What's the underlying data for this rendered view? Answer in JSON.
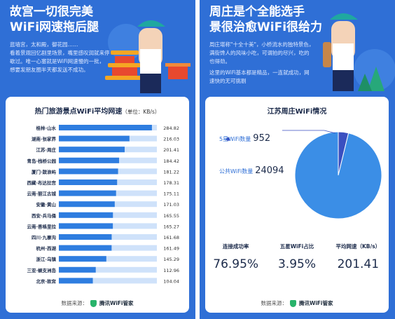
{
  "left": {
    "headline": [
      "故宫一切很完美",
      "WiFi网速拖后腿"
    ],
    "intro": [
      "逛墙宫，太和殿，御花园……",
      "看着景观回忆剧里场景，嘴里感叹润就来停",
      "歇过。唯一心塞就是WiFi网速慢的一批，",
      "想要发朋友圈半天都发送不成功。"
    ],
    "card_title": "热门旅游景点WiFi平均网速",
    "card_unit": "（单位：KB/s）",
    "footer_source": "数据来源：",
    "footer_brand": "腾讯WiFi管家"
  },
  "right": {
    "headline": [
      "周庄是个全能选手",
      "景很治愈WiFi很给力"
    ],
    "intro": [
      "周庄堪称\"十全十美\"，小桥流水的独特景色，",
      "满街馋人的风味小吃，可谓拍的尽兴，吃的",
      "也得劲。",
      "这里的WiFi基本都是精品，一连就成功，网",
      "速快的无可挑剔"
    ],
    "card_title": "江苏周庄WiFi情况",
    "pie_labels": [
      {
        "label": "5星WiFi数量",
        "value": "952"
      },
      {
        "label": "公共WiFi数量",
        "value": "24094"
      }
    ],
    "stats": [
      {
        "label": "连接成功率",
        "value": "76.95%"
      },
      {
        "label": "五星WiFi占比",
        "value": "3.95%"
      },
      {
        "label": "平均网速（KB/s）",
        "value": "201.41"
      }
    ],
    "footer_source": "数据来源：",
    "footer_brand": "腾讯WiFi管家"
  },
  "colors": {
    "panel_bg": "#2f6fd6",
    "bar": "#2e7de0",
    "bar_track": "#cfe2fa",
    "pie_main": "#3b8ee6",
    "pie_small": "#3a4fc0"
  },
  "chart_data": [
    {
      "type": "bar",
      "orientation": "horizontal",
      "title": "热门旅游景点WiFi平均网速",
      "categories": [
        "桂林·山水",
        "湖南·张家界",
        "江苏·周庄",
        "青岛·栈桥公园",
        "厦门·鼓浪屿",
        "西藏·布达拉宫",
        "云南·丽江古城",
        "安徽·黄山",
        "西安·兵马俑",
        "云南·香格里拉",
        "四川·九寨沟",
        "杭州·西湖",
        "浙江·乌镇",
        "三亚·蜈支洲岛",
        "北京·故宫"
      ],
      "values": [
        284.82,
        216.03,
        201.41,
        184.42,
        181.22,
        178.31,
        175.11,
        171.03,
        165.55,
        165.27,
        161.68,
        161.49,
        145.29,
        112.96,
        104.04
      ],
      "value_labels": [
        "284.82",
        "216.03",
        "201.41",
        "184.42",
        "181.22",
        "178.31",
        "175.11",
        "171.03",
        "165.55",
        "165.27",
        "161.68",
        "161.49",
        "145.29",
        "112.96",
        "104.04"
      ],
      "xlim": [
        0,
        300
      ]
    },
    {
      "type": "pie",
      "title": "江苏周庄WiFi情况",
      "slices": [
        {
          "name": "5星WiFi数量",
          "value": 952
        },
        {
          "name": "公共WiFi数量",
          "value": 24094
        }
      ]
    }
  ]
}
